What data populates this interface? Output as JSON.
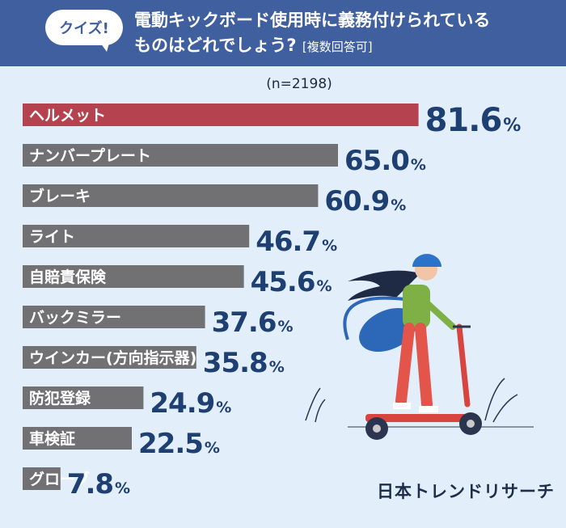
{
  "header": {
    "badge": "クイズ!",
    "title_line1": "電動キックボード使用時に義務付けられている",
    "title_line2": "ものはどれでしょう?",
    "title_note": "[複数回答可]"
  },
  "sample_size": "(n=2198)",
  "brand": "日本トレンドリサーチ",
  "colors": {
    "highlight_bar": "#b5434f",
    "bar": "#717174",
    "value_text": "#1e3f72",
    "header_bg": "#3f5f9e",
    "background": "#e3eefb"
  },
  "chart_data": {
    "type": "bar",
    "orientation": "horizontal",
    "categories": [
      "ヘルメット",
      "ナンバープレート",
      "ブレーキ",
      "ライト",
      "自賠責保険",
      "バックミラー",
      "ウインカー(方向指示器)",
      "防犯登録",
      "車検証",
      "グローブ"
    ],
    "values": [
      81.6,
      65.0,
      60.9,
      46.7,
      45.6,
      37.6,
      35.8,
      24.9,
      22.5,
      7.8
    ],
    "value_labels": [
      "81.6",
      "65.0",
      "60.9",
      "46.7",
      "45.6",
      "37.6",
      "35.8",
      "24.9",
      "22.5",
      "7.8"
    ],
    "unit": "%",
    "highlight_index": 0
  }
}
